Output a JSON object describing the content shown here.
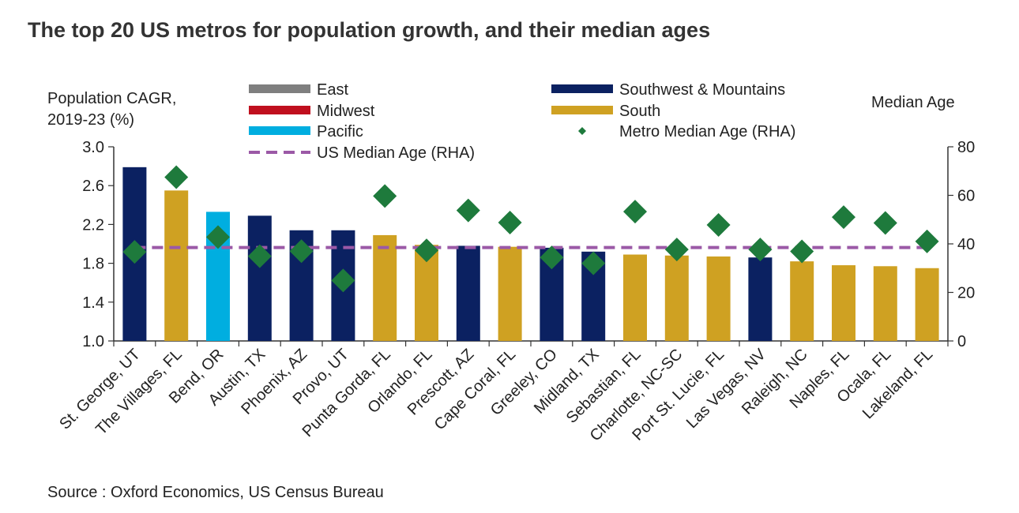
{
  "title": "The top 20 US metros for population growth, and their median ages",
  "source": "Source : Oxford Economics, US Census Bureau",
  "chart_data": {
    "type": "bar",
    "title": "The top 20 US metros for population growth, and their median ages",
    "ylabel_left_line1": "Population CAGR,",
    "ylabel_left_line2": "2019-23 (%)",
    "ylabel_right": "Median Age",
    "ylim_left": [
      1.0,
      3.0
    ],
    "ylim_right": [
      0,
      80
    ],
    "yticks_left": [
      "1.0",
      "1.4",
      "1.8",
      "2.2",
      "2.6",
      "3.0"
    ],
    "yticks_right": [
      "0",
      "20",
      "40",
      "60",
      "80"
    ],
    "grid": false,
    "legend_position": "top",
    "legend": [
      {
        "key": "East",
        "label": "East",
        "color": "#7f7f7f",
        "marker": "bar"
      },
      {
        "key": "Midwest",
        "label": "Midwest",
        "color": "#c00f1e",
        "marker": "bar"
      },
      {
        "key": "Pacific",
        "label": "Pacific",
        "color": "#00aee0",
        "marker": "bar"
      },
      {
        "key": "us_median",
        "label": "US Median Age (RHA)",
        "color": "#9b59a6",
        "marker": "dash"
      },
      {
        "key": "Southwest",
        "label": "Southwest & Mountains",
        "color": "#0b2161",
        "marker": "bar"
      },
      {
        "key": "South",
        "label": "South",
        "color": "#cfa122",
        "marker": "bar"
      },
      {
        "key": "metro_age",
        "label": "Metro Median Age (RHA)",
        "color": "#1e7a3c",
        "marker": "diamond"
      }
    ],
    "categories": [
      "St. George, UT",
      "The Villages, FL",
      "Bend, OR",
      "Austin, TX",
      "Phoenix, AZ",
      "Provo, UT",
      "Punta Gorda, FL",
      "Orlando, FL",
      "Prescott, AZ",
      "Cape Coral, FL",
      "Greeley, CO",
      "Midland, TX",
      "Sebastian, FL",
      "Charlotte, NC-SC",
      "Port St. Lucie, FL",
      "Las Vegas, NV",
      "Raleigh, NC",
      "Naples, FL",
      "Ocala, FL",
      "Lakeland, FL"
    ],
    "regions": [
      "Southwest",
      "South",
      "Pacific",
      "Southwest",
      "Southwest",
      "Southwest",
      "South",
      "South",
      "Southwest",
      "South",
      "Southwest",
      "Southwest",
      "South",
      "South",
      "South",
      "Southwest",
      "South",
      "South",
      "South",
      "South"
    ],
    "series": [
      {
        "name": "Population CAGR, 2019-23 (%)",
        "axis": "left",
        "values": [
          2.79,
          2.55,
          2.33,
          2.29,
          2.14,
          2.14,
          2.09,
          1.99,
          1.98,
          1.97,
          1.96,
          1.92,
          1.89,
          1.88,
          1.87,
          1.86,
          1.82,
          1.78,
          1.77,
          1.75
        ]
      },
      {
        "name": "Metro Median Age (RHA)",
        "axis": "right",
        "values": [
          36.7,
          67.5,
          42.8,
          34.9,
          37.0,
          24.9,
          59.7,
          37.3,
          53.8,
          48.8,
          34.4,
          32.0,
          53.3,
          37.7,
          47.8,
          37.7,
          36.9,
          51.0,
          48.6,
          41.0
        ]
      },
      {
        "name": "US Median Age (RHA)",
        "axis": "right",
        "value": 38.5
      }
    ]
  }
}
